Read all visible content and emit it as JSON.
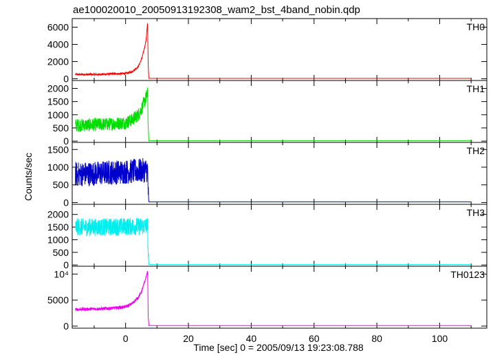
{
  "chart_data": {
    "type": "line",
    "title": "ae100020010_20050913192308_wam2_bst_4band_nobin.qdp",
    "xlabel": "Time [sec] 0 = 2005/09/13 19:23:08.788",
    "ylabel": "Counts/sec",
    "xlim": [
      -17,
      115
    ],
    "xticks": [
      0,
      20,
      40,
      60,
      80,
      100
    ],
    "xtick_labels": [
      "0",
      "20",
      "40",
      "60",
      "80",
      "100"
    ],
    "grid": false,
    "legend": "none",
    "series": [
      {
        "name": "TH0",
        "color": "#ff0000",
        "ylim": [
          -200,
          7000
        ],
        "yticks": [
          0,
          2000,
          4000,
          6000
        ],
        "ytick_labels": [
          "0",
          "2000",
          "4000",
          "6000"
        ],
        "x": [
          -16,
          -10,
          -5,
          0,
          2,
          4,
          5,
          6,
          6.5,
          7,
          7.2,
          7.4,
          8,
          110
        ],
        "y": [
          500,
          500,
          550,
          620,
          800,
          1400,
          2200,
          3500,
          4500,
          6500,
          1500,
          50,
          50,
          50
        ]
      },
      {
        "name": "TH1",
        "color": "#00dd00",
        "ylim": [
          -50,
          2300
        ],
        "yticks": [
          0,
          500,
          1000,
          1500,
          2000
        ],
        "ytick_labels": [
          "0",
          "500",
          "1000",
          "1500",
          "2000"
        ],
        "x": [
          -16,
          -10,
          -5,
          0,
          2,
          4,
          5,
          6,
          7,
          7.2,
          7.4,
          8,
          110
        ],
        "y": [
          600,
          620,
          650,
          700,
          800,
          1000,
          1200,
          1500,
          1800,
          500,
          20,
          20,
          20
        ],
        "noise": 250
      },
      {
        "name": "TH2",
        "color": "#0000cc",
        "ylim": [
          -50,
          1700
        ],
        "yticks": [
          0,
          500,
          1000,
          1500
        ],
        "ytick_labels": [
          "0",
          "500",
          "1000",
          "1500"
        ],
        "x": [
          -16,
          -10,
          -5,
          0,
          5,
          7,
          7.2,
          7.4,
          8,
          110
        ],
        "y": [
          800,
          820,
          850,
          870,
          900,
          920,
          300,
          20,
          20,
          20
        ],
        "noise": 350
      },
      {
        "name": "TH3",
        "color": "#00eeee",
        "ylim": [
          -50,
          2400
        ],
        "yticks": [
          0,
          500,
          1000,
          1500,
          2000
        ],
        "ytick_labels": [
          "0",
          "500",
          "1000",
          "1500",
          "2000"
        ],
        "x": [
          -16,
          -10,
          -5,
          0,
          5,
          7,
          7.2,
          7.4,
          8,
          110
        ],
        "y": [
          1500,
          1500,
          1500,
          1520,
          1530,
          1550,
          400,
          20,
          20,
          20
        ],
        "noise": 350
      },
      {
        "name": "TH0123",
        "color": "#ee00ee",
        "ylim": [
          -400,
          11500
        ],
        "yticks": [
          0,
          5000,
          10000
        ],
        "ytick_labels": [
          "0",
          "5000",
          "10⁴"
        ],
        "x": [
          -16,
          -10,
          -5,
          0,
          2,
          4,
          5,
          6,
          7,
          7.2,
          7.4,
          8,
          110
        ],
        "y": [
          3200,
          3300,
          3400,
          3700,
          4300,
          5500,
          6500,
          8300,
          10500,
          2000,
          100,
          100,
          100
        ],
        "noise": 300
      }
    ]
  }
}
